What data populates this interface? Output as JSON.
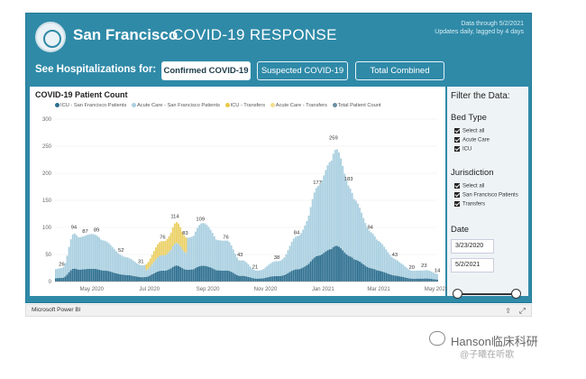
{
  "header": {
    "city": "San Francisco",
    "title": "COVID-19 RESPONSE",
    "data_through": "Data through 5/2/2021",
    "data_lag": "Updates daily, lagged by 4 days"
  },
  "hospitalization_bar": {
    "label": "See Hospitalizations for:",
    "tabs": [
      {
        "label": "Confirmed COVID-19",
        "selected": true
      },
      {
        "label": "Suspected COVID-19",
        "selected": false
      },
      {
        "label": "Total Combined",
        "selected": false
      }
    ]
  },
  "filters": {
    "title": "Filter the Data:",
    "bed_type": {
      "title": "Bed Type",
      "options": [
        {
          "label": "Select all",
          "checked": true
        },
        {
          "label": "Acute Care",
          "checked": true
        },
        {
          "label": "ICU",
          "checked": true
        }
      ]
    },
    "jurisdiction": {
      "title": "Jurisdiction",
      "options": [
        {
          "label": "Select all",
          "checked": true
        },
        {
          "label": "San Francisco Patients",
          "checked": true
        },
        {
          "label": "Transfers",
          "checked": true
        }
      ]
    },
    "date": {
      "title": "Date",
      "start": "3/23/2020",
      "end": "5/2/2021"
    }
  },
  "footer": {
    "brand": "Microsoft Power BI",
    "share_icon": "share-icon",
    "expand_icon": "expand-icon"
  },
  "watermark": {
    "line1": "Hanson临床科研",
    "line2": "@子曦在听歌"
  },
  "colors": {
    "frame": "#2f8aa8",
    "icu_sf": "#2c6e8f",
    "acute_sf": "#a9cfe0",
    "icu_transfers": "#e8c84a",
    "acute_transfers": "#f2df8e",
    "total": "#6a8fa3"
  },
  "chart_data": {
    "type": "bar",
    "title": "COVID-19 Patient Count",
    "series_names": [
      "ICU - San Francisco Patients",
      "Acute Care - San Francisco Patients",
      "ICU - Transfers",
      "Acute Care - Transfers",
      "Total Patient Count"
    ],
    "x_ticks": [
      "May 2020",
      "Jul 2020",
      "Sep 2020",
      "Nov 2020",
      "Jan 2021",
      "Mar 2021",
      "May 2021"
    ],
    "y_ticks": [
      "0",
      "50",
      "100",
      "150",
      "200",
      "250",
      "300"
    ],
    "ylim": [
      0,
      300
    ],
    "x_range": [
      "2020-03-23",
      "2021-05-02"
    ],
    "total_peaks": [
      {
        "date": "2020-03-30",
        "value": 26
      },
      {
        "date": "2020-04-12",
        "value": 94
      },
      {
        "date": "2020-04-24",
        "value": 87
      },
      {
        "date": "2020-05-06",
        "value": 89
      },
      {
        "date": "2020-06-01",
        "value": 52
      },
      {
        "date": "2020-06-22",
        "value": 31
      },
      {
        "date": "2020-07-15",
        "value": 76
      },
      {
        "date": "2020-07-28",
        "value": 114
      },
      {
        "date": "2020-08-08",
        "value": 83
      },
      {
        "date": "2020-08-24",
        "value": 109
      },
      {
        "date": "2020-09-20",
        "value": 76
      },
      {
        "date": "2020-10-05",
        "value": 43
      },
      {
        "date": "2020-10-21",
        "value": 21
      },
      {
        "date": "2020-11-13",
        "value": 38
      },
      {
        "date": "2020-12-04",
        "value": 84
      },
      {
        "date": "2020-12-26",
        "value": 177
      },
      {
        "date": "2021-01-12",
        "value": 259
      },
      {
        "date": "2021-01-28",
        "value": 183
      },
      {
        "date": "2021-02-20",
        "value": 94
      },
      {
        "date": "2021-03-18",
        "value": 43
      },
      {
        "date": "2021-04-05",
        "value": 20
      },
      {
        "date": "2021-04-18",
        "value": 23
      },
      {
        "date": "2021-05-02",
        "value": 14
      }
    ]
  }
}
